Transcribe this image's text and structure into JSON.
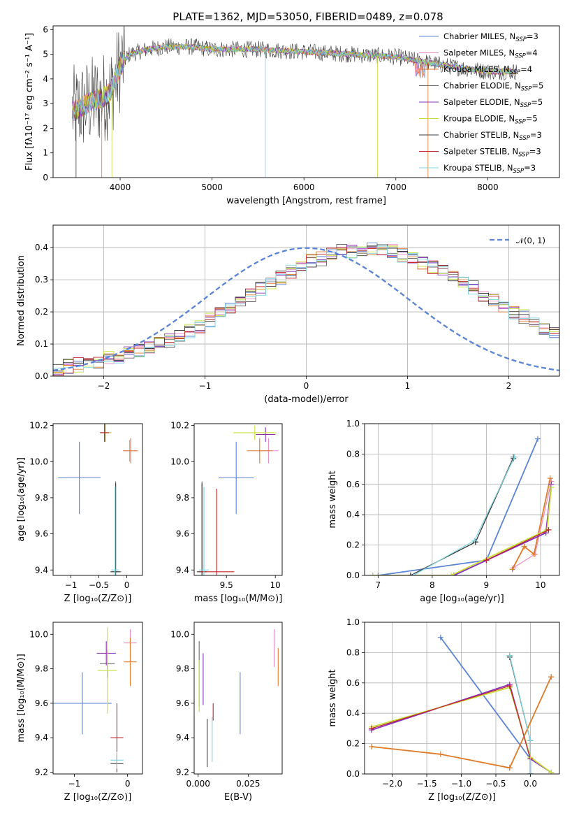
{
  "title": "PLATE=1362, MJD=53050, FIBERID=0489, z=0.078",
  "colors": {
    "Chabrier MILES": "#5b84d4",
    "Salpeter MILES": "#e98cc4",
    "Kroupa MILES": "#e07b29",
    "Chabrier ELODIE": "#6b6b6b",
    "Salpeter ELODIE": "#8c2fb8",
    "Kroupa ELODIE": "#c6e03a",
    "Chabrier STELIB": "#3b3b3b",
    "Salpeter STELIB": "#c0262a",
    "Kroupa STELIB": "#7fd6e0"
  },
  "legend_spectrum": [
    {
      "pre": "Chabrier MILES, N",
      "sub": "SSP",
      "post": "=3"
    },
    {
      "pre": "Salpeter MILES, N",
      "sub": "SSP",
      "post": "=4"
    },
    {
      "pre": "Kroupa MILES, N",
      "sub": "SSP",
      "post": "=4"
    },
    {
      "pre": "Chabrier ELODIE, N",
      "sub": "SSP",
      "post": "=5"
    },
    {
      "pre": "Salpeter ELODIE, N",
      "sub": "SSP",
      "post": "=5"
    },
    {
      "pre": "Kroupa ELODIE, N",
      "sub": "SSP",
      "post": "=5"
    },
    {
      "pre": "Chabrier STELIB, N",
      "sub": "SSP",
      "post": "=3"
    },
    {
      "pre": "Salpeter STELIB, N",
      "sub": "SSP",
      "post": "=3"
    },
    {
      "pre": "Kroupa STELIB, N",
      "sub": "SSP",
      "post": "=3"
    }
  ],
  "chart_data": [
    {
      "id": "spectrum",
      "type": "line",
      "xlabel": "wavelength [Angstrom, rest frame]",
      "ylabel": "Flux [fλ10⁻¹⁷ erg cm⁻² s⁻¹ A⁻¹]",
      "xlim": [
        3270,
        8780
      ],
      "ylim": [
        0,
        6.15
      ],
      "xticks": [
        4000,
        5000,
        6000,
        7000,
        8000
      ],
      "yticks": [
        0,
        1,
        2,
        3,
        4,
        5,
        6
      ],
      "grid": false,
      "legend": "upper right",
      "continuum": [
        [
          3500,
          2.7
        ],
        [
          3600,
          2.9
        ],
        [
          3700,
          3.1
        ],
        [
          3800,
          3.2
        ],
        [
          3900,
          3.5
        ],
        [
          4000,
          4.5
        ],
        [
          4100,
          5.0
        ],
        [
          4300,
          5.2
        ],
        [
          4500,
          5.3
        ],
        [
          4800,
          5.3
        ],
        [
          5000,
          5.2
        ],
        [
          5500,
          5.2
        ],
        [
          6000,
          5.1
        ],
        [
          6500,
          5.0
        ],
        [
          7000,
          4.9
        ],
        [
          7300,
          4.7
        ],
        [
          7600,
          4.5
        ],
        [
          8000,
          4.3
        ],
        [
          8300,
          4.3
        ]
      ]
    },
    {
      "id": "residuals",
      "type": "step",
      "xlabel": "(data-model)/error",
      "ylabel": "Normed distribution",
      "xlim": [
        -2.5,
        2.5
      ],
      "ylim": [
        0,
        0.47
      ],
      "xticks": [
        -2,
        -1,
        0,
        1,
        2
      ],
      "yticks": [
        0.0,
        0.1,
        0.2,
        0.3,
        0.4
      ],
      "grid": true,
      "legend": "upper right",
      "legend_label": "𝒩(0, 1)",
      "bin_width": 0.1,
      "bin_start": -2.5,
      "base_hist": [
        0.02,
        0.03,
        0.035,
        0.04,
        0.045,
        0.055,
        0.06,
        0.07,
        0.08,
        0.085,
        0.1,
        0.11,
        0.125,
        0.14,
        0.155,
        0.175,
        0.195,
        0.21,
        0.23,
        0.25,
        0.27,
        0.285,
        0.305,
        0.325,
        0.34,
        0.36,
        0.365,
        0.38,
        0.39,
        0.39,
        0.395,
        0.395,
        0.39,
        0.39,
        0.375,
        0.37,
        0.355,
        0.34,
        0.325,
        0.31,
        0.29,
        0.275,
        0.255,
        0.24,
        0.22,
        0.2,
        0.185,
        0.165,
        0.15,
        0.135,
        0.12,
        0.105,
        0.095,
        0.08,
        0.07,
        0.06,
        0.055,
        0.045,
        0.04,
        0.035,
        0.03,
        0.03,
        0.025,
        0.02
      ]
    },
    {
      "id": "age-vs-Z",
      "type": "errorbar",
      "xlabel": "Z [log₁₀(Z/Z⊙)]",
      "ylabel": "age  [log₁₀(age/yr)]",
      "xlim": [
        -1.32,
        0.28
      ],
      "ylim": [
        9.37,
        10.21
      ],
      "xticks": [
        -1,
        -0.5,
        0
      ],
      "xticklabels": [
        "−1",
        "−0.5",
        "0"
      ],
      "yticks": [
        9.4,
        9.6,
        9.8,
        10.0,
        10.2
      ],
      "points": [
        {
          "model": "Chabrier MILES",
          "x": -0.85,
          "y": 9.91,
          "xerr": 0.38,
          "yerr": 0.2
        },
        {
          "model": "Salpeter MILES",
          "x": 0.05,
          "y": 10.06,
          "xerr": 0.12,
          "yerr": 0.06
        },
        {
          "model": "Kroupa MILES",
          "x": 0.07,
          "y": 10.06,
          "xerr": 0.13,
          "yerr": 0.07
        },
        {
          "model": "Chabrier ELODIE",
          "x": -0.2,
          "y": 9.39,
          "xerr": 0.1,
          "yerr": 0.5
        },
        {
          "model": "Salpeter ELODIE",
          "x": -0.38,
          "y": 10.16,
          "xerr": 0.1,
          "yerr": 0.05
        },
        {
          "model": "Kroupa ELODIE",
          "x": -0.38,
          "y": 10.16,
          "xerr": 0.1,
          "yerr": 0.05
        },
        {
          "model": "Chabrier STELIB",
          "x": -0.2,
          "y": 9.39,
          "xerr": 0.08,
          "yerr": 0.49
        },
        {
          "model": "Salpeter STELIB",
          "x": -0.4,
          "y": 10.16,
          "xerr": 0.08,
          "yerr": 0.05
        },
        {
          "model": "Kroupa STELIB",
          "x": -0.21,
          "y": 9.4,
          "xerr": 0.07,
          "yerr": 0.46
        }
      ]
    },
    {
      "id": "age-vs-mass",
      "type": "errorbar",
      "xlabel": "mass [log₁₀(M/M⊙)]",
      "ylabel": "",
      "xlim": [
        9.17,
        10.07
      ],
      "ylim": [
        9.37,
        10.21
      ],
      "xticks": [
        9.5,
        10.0
      ],
      "yticks": [
        9.4,
        9.6,
        9.8,
        10.0,
        10.2
      ],
      "points": [
        {
          "model": "Chabrier MILES",
          "x": 9.6,
          "y": 9.91,
          "xerr": 0.18,
          "yerr": 0.2
        },
        {
          "model": "Salpeter MILES",
          "x": 9.93,
          "y": 10.06,
          "xerr": 0.1,
          "yerr": 0.07
        },
        {
          "model": "Kroupa MILES",
          "x": 9.84,
          "y": 10.06,
          "xerr": 0.13,
          "yerr": 0.07
        },
        {
          "model": "Chabrier ELODIE",
          "x": 9.25,
          "y": 9.39,
          "xerr": 0.05,
          "yerr": 0.5
        },
        {
          "model": "Salpeter ELODIE",
          "x": 9.9,
          "y": 10.15,
          "xerr": 0.1,
          "yerr": 0.04
        },
        {
          "model": "Kroupa ELODIE",
          "x": 9.79,
          "y": 10.16,
          "xerr": 0.22,
          "yerr": 0.04
        },
        {
          "model": "Chabrier STELIB",
          "x": 9.25,
          "y": 9.39,
          "xerr": 0.05,
          "yerr": 0.49
        },
        {
          "model": "Salpeter STELIB",
          "x": 9.4,
          "y": 9.39,
          "xerr": 0.18,
          "yerr": 0.46
        },
        {
          "model": "Kroupa STELIB",
          "x": 9.27,
          "y": 9.4,
          "xerr": 0.05,
          "yerr": 0.46
        }
      ]
    },
    {
      "id": "weight-vs-age",
      "type": "line",
      "xlabel": "age  [log₁₀(age/yr)]",
      "ylabel": "mass weight",
      "xlim": [
        6.75,
        10.35
      ],
      "ylim": [
        0,
        1.0
      ],
      "xticks": [
        7,
        8,
        9,
        10
      ],
      "yticks": [
        0.0,
        0.2,
        0.4,
        0.6,
        0.8,
        1.0
      ],
      "grid": true,
      "series": [
        {
          "model": "Chabrier MILES",
          "x": [
            7.0,
            9.0,
            9.95
          ],
          "y": [
            0.0,
            0.1,
            0.9
          ]
        },
        {
          "model": "Salpeter MILES",
          "x": [
            9.5,
            9.9,
            10.2
          ],
          "y": [
            0.05,
            0.14,
            0.62
          ]
        },
        {
          "model": "Kroupa MILES",
          "x": [
            9.48,
            9.7,
            9.88,
            10.18
          ],
          "y": [
            0.04,
            0.19,
            0.14,
            0.64
          ]
        },
        {
          "model": "Chabrier ELODIE",
          "x": [
            7.6,
            8.8,
            9.5
          ],
          "y": [
            0.0,
            0.22,
            0.78
          ]
        },
        {
          "model": "Salpeter ELODIE",
          "x": [
            6.9,
            8.4,
            10.1,
            10.2
          ],
          "y": [
            0.0,
            0.0,
            0.28,
            0.6
          ]
        },
        {
          "model": "Kroupa ELODIE",
          "x": [
            6.9,
            8.35,
            10.12,
            10.2
          ],
          "y": [
            0.0,
            0.0,
            0.3,
            0.58
          ]
        },
        {
          "model": "Chabrier STELIB",
          "x": [
            7.6,
            8.8,
            9.5
          ],
          "y": [
            0.0,
            0.22,
            0.77
          ]
        },
        {
          "model": "Salpeter STELIB",
          "x": [
            9.0,
            10.15
          ],
          "y": [
            0.1,
            0.3
          ]
        },
        {
          "model": "Kroupa STELIB",
          "x": [
            7.65,
            8.78,
            9.52
          ],
          "y": [
            0.0,
            0.23,
            0.78
          ]
        }
      ]
    },
    {
      "id": "mass-vs-Z",
      "type": "errorbar",
      "xlabel": "Z [log₁₀(Z/Z⊙)]",
      "ylabel": "mass [log₁₀(M/M⊙)]",
      "xlim": [
        -1.4,
        0.28
      ],
      "ylim": [
        9.19,
        10.07
      ],
      "xticks": [
        -1,
        0
      ],
      "xticklabels": [
        "−1",
        "0"
      ],
      "yticks": [
        9.2,
        9.4,
        9.6,
        9.8,
        10.0
      ],
      "points": [
        {
          "model": "Chabrier MILES",
          "x": -0.85,
          "y": 9.6,
          "xerr": 0.55,
          "yerr": 0.18
        },
        {
          "model": "Salpeter MILES",
          "x": 0.05,
          "y": 9.95,
          "xerr": 0.12,
          "yerr": 0.08
        },
        {
          "model": "Kroupa MILES",
          "x": 0.05,
          "y": 9.84,
          "xerr": 0.12,
          "yerr": 0.14
        },
        {
          "model": "Chabrier ELODIE",
          "x": -0.38,
          "y": 9.83,
          "xerr": 0.14,
          "yerr": 0.08
        },
        {
          "model": "Salpeter ELODIE",
          "x": -0.4,
          "y": 9.89,
          "xerr": 0.18,
          "yerr": 0.07
        },
        {
          "model": "Kroupa ELODIE",
          "x": -0.38,
          "y": 9.79,
          "xerr": 0.18,
          "yerr": 0.25
        },
        {
          "model": "Chabrier STELIB",
          "x": -0.2,
          "y": 9.25,
          "xerr": 0.12,
          "yerr": 0.05
        },
        {
          "model": "Salpeter STELIB",
          "x": -0.2,
          "y": 9.4,
          "xerr": 0.12,
          "yerr": 0.2
        },
        {
          "model": "Kroupa STELIB",
          "x": -0.2,
          "y": 9.27,
          "xerr": 0.12,
          "yerr": 0.05
        }
      ]
    },
    {
      "id": "mass-vs-EBV",
      "type": "errorbar",
      "xlabel": "E(B-V)",
      "ylabel": "",
      "xlim": [
        -0.002,
        0.042
      ],
      "ylim": [
        9.19,
        10.07
      ],
      "xticks": [
        0.0,
        0.025
      ],
      "xticklabels": [
        "0.000",
        "0.025"
      ],
      "yticks": [
        9.2,
        9.4,
        9.6,
        9.8,
        10.0
      ],
      "points": [
        {
          "model": "Chabrier MILES",
          "x": 0.021,
          "y": 9.6,
          "xerr": 0,
          "yerr": 0.18
        },
        {
          "model": "Salpeter MILES",
          "x": 0.038,
          "y": 9.92,
          "xerr": 0,
          "yerr": 0.11
        },
        {
          "model": "Kroupa MILES",
          "x": 0.04,
          "y": 9.81,
          "xerr": 0,
          "yerr": 0.11
        },
        {
          "model": "Chabrier ELODIE",
          "x": 0.0005,
          "y": 9.77,
          "xerr": 0,
          "yerr": 0.19
        },
        {
          "model": "Salpeter ELODIE",
          "x": 0.0025,
          "y": 9.74,
          "xerr": 0,
          "yerr": 0.15
        },
        {
          "model": "Kroupa ELODIE",
          "x": 0.0005,
          "y": 9.7,
          "xerr": 0,
          "yerr": 0.15
        },
        {
          "model": "Chabrier STELIB",
          "x": 0.0045,
          "y": 9.37,
          "xerr": 0,
          "yerr": 0.14
        },
        {
          "model": "Salpeter STELIB",
          "x": 0.0075,
          "y": 9.55,
          "xerr": 0,
          "yerr": 0.05
        },
        {
          "model": "Kroupa STELIB",
          "x": 0.007,
          "y": 9.39,
          "xerr": 0,
          "yerr": 0.13
        }
      ]
    },
    {
      "id": "weight-vs-Z",
      "type": "line",
      "xlabel": "Z [log₁₀(Z/Z⊙)]",
      "ylabel": "mass weight",
      "xlim": [
        -2.4,
        0.42
      ],
      "ylim": [
        0,
        1.0
      ],
      "xticks": [
        -2.0,
        -1.5,
        -1.0,
        -0.5,
        0.0
      ],
      "xticklabels": [
        "−2.0",
        "−1.5",
        "−1.0",
        "−0.5",
        "0.0"
      ],
      "yticks": [
        0.0,
        0.2,
        0.4,
        0.6,
        0.8,
        1.0
      ],
      "grid": true,
      "series": [
        {
          "model": "Chabrier MILES",
          "x": [
            -1.3,
            0.0,
            0.0
          ],
          "y": [
            0.9,
            0.1,
            0.0
          ]
        },
        {
          "model": "Salpeter MILES",
          "x": [
            -0.3,
            0.3
          ],
          "y": [
            0.04,
            0.64
          ]
        },
        {
          "model": "Kroupa MILES",
          "x": [
            -2.3,
            -1.3,
            -0.3,
            0.3
          ],
          "y": [
            0.18,
            0.13,
            0.04,
            0.64
          ]
        },
        {
          "model": "Chabrier ELODIE",
          "x": [
            -0.3,
            0.0,
            0.0
          ],
          "y": [
            0.78,
            0.22,
            0.0
          ]
        },
        {
          "model": "Salpeter ELODIE",
          "x": [
            -2.3,
            -0.3,
            0.0,
            0.3
          ],
          "y": [
            0.29,
            0.59,
            0.1,
            0.01
          ]
        },
        {
          "model": "Kroupa ELODIE",
          "x": [
            -2.3,
            -0.3,
            0.0,
            0.3
          ],
          "y": [
            0.31,
            0.57,
            0.11,
            0.01
          ]
        },
        {
          "model": "Chabrier STELIB",
          "x": [
            -0.3,
            0.0,
            0.0
          ],
          "y": [
            0.77,
            0.22,
            0.0
          ]
        },
        {
          "model": "Salpeter STELIB",
          "x": [
            -2.3,
            -0.3,
            0.0
          ],
          "y": [
            0.3,
            0.58,
            0.1
          ]
        },
        {
          "model": "Kroupa STELIB",
          "x": [
            -0.3,
            0.0,
            0.0
          ],
          "y": [
            0.78,
            0.22,
            0.0
          ]
        }
      ]
    }
  ]
}
